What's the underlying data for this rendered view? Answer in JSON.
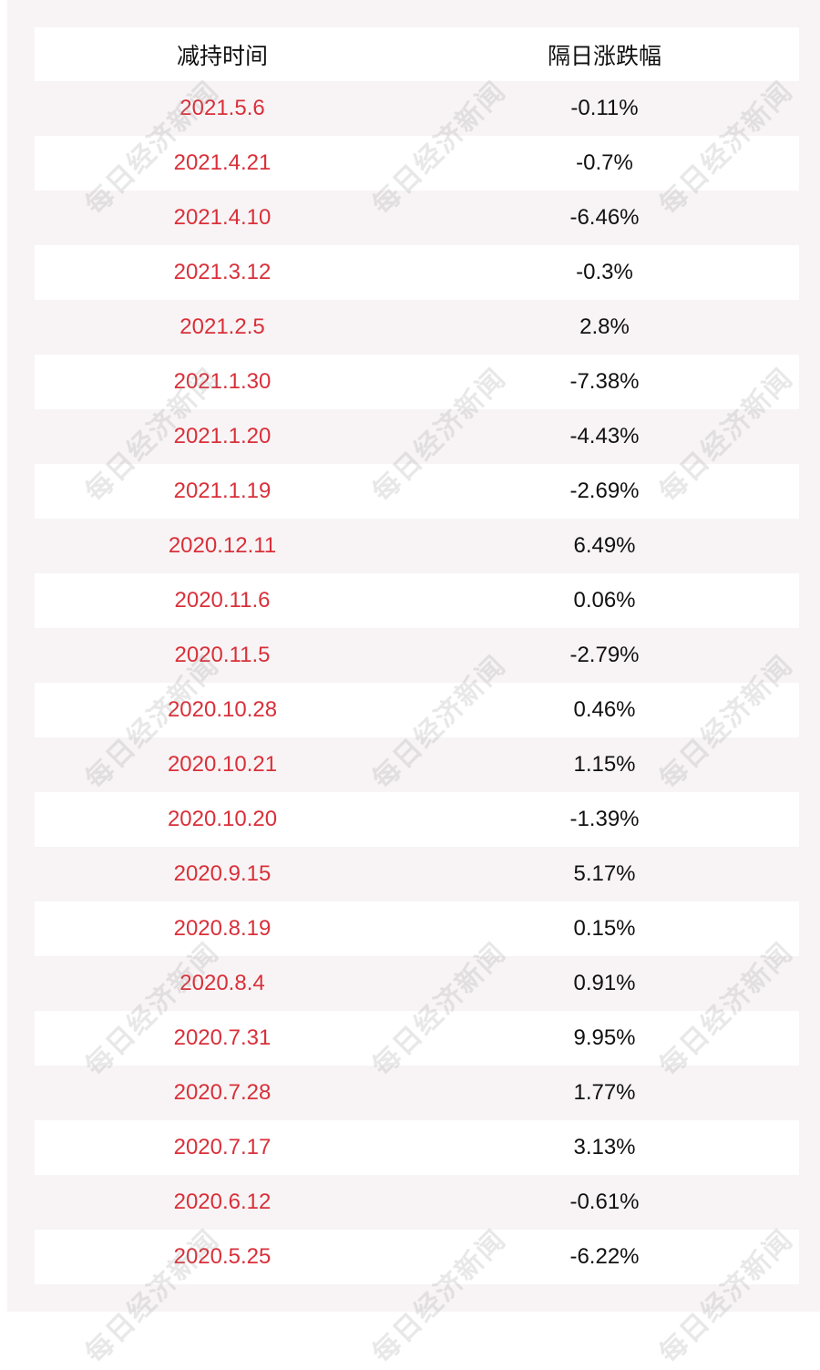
{
  "table": {
    "headers": [
      "减持时间",
      "隔日涨跌幅"
    ],
    "rows": [
      {
        "date": "2021.5.6",
        "change": "-0.11%"
      },
      {
        "date": "2021.4.21",
        "change": "-0.7%"
      },
      {
        "date": "2021.4.10",
        "change": "-6.46%"
      },
      {
        "date": "2021.3.12",
        "change": "-0.3%"
      },
      {
        "date": "2021.2.5",
        "change": "2.8%"
      },
      {
        "date": "2021.1.30",
        "change": "-7.38%"
      },
      {
        "date": "2021.1.20",
        "change": "-4.43%"
      },
      {
        "date": "2021.1.19",
        "change": "-2.69%"
      },
      {
        "date": "2020.12.11",
        "change": "6.49%"
      },
      {
        "date": "2020.11.6",
        "change": "0.06%"
      },
      {
        "date": "2020.11.5",
        "change": "-2.79%"
      },
      {
        "date": "2020.10.28",
        "change": "0.46%"
      },
      {
        "date": "2020.10.21",
        "change": "1.15%"
      },
      {
        "date": "2020.10.20",
        "change": "-1.39%"
      },
      {
        "date": "2020.9.15",
        "change": "5.17%"
      },
      {
        "date": "2020.8.19",
        "change": "0.15%"
      },
      {
        "date": "2020.8.4",
        "change": "0.91%"
      },
      {
        "date": "2020.7.31",
        "change": "9.95%"
      },
      {
        "date": "2020.7.28",
        "change": "1.77%"
      },
      {
        "date": "2020.7.17",
        "change": "3.13%"
      },
      {
        "date": "2020.6.12",
        "change": "-0.61%"
      },
      {
        "date": "2020.5.25",
        "change": "-6.22%"
      }
    ]
  },
  "watermark": "每日经济新闻",
  "colors": {
    "date_text": "#d9303a",
    "value_text": "#111111",
    "row_tint": "#f8f4f5"
  }
}
